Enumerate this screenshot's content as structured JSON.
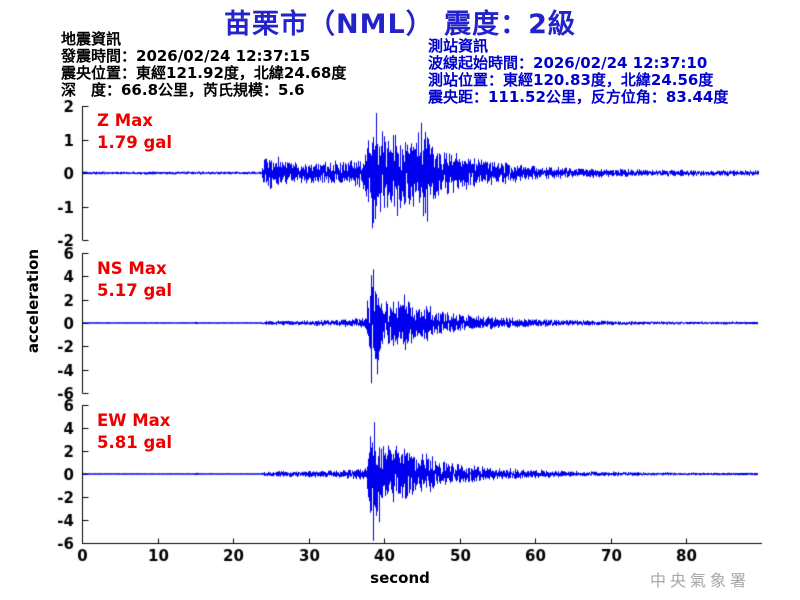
{
  "title": "苗栗市（NML） 震度：2級",
  "earthquake_info": {
    "heading": "地震資訊",
    "lines": [
      "發震時間：2026/02/24 12:37:15",
      "震央位置：東經121.92度，北緯24.68度",
      "深　度：66.8公里，芮氏規模：5.6"
    ]
  },
  "station_info": {
    "heading": "測站資訊",
    "lines": [
      "波線起始時間：2026/02/24 12:37:10",
      "測站位置：東經120.83度，北緯24.56度",
      "震央距：111.52公里，反方位角：83.44度"
    ]
  },
  "watermark": "中央氣象署",
  "colors": {
    "title": "#2323cc",
    "station_info": "#0000cc",
    "max_label": "#ee0000",
    "waveform": "#0000ee",
    "axis": "#000000",
    "watermark": "#a8a8a8"
  },
  "chart_data": {
    "type": "line",
    "title": "苗栗市（NML） 震度：2級",
    "xlabel": "second",
    "ylabel": "acceleration",
    "x_range": [
      0,
      90
    ],
    "x_ticks": [
      0,
      10,
      20,
      30,
      40,
      50,
      60,
      70,
      80
    ],
    "grid": false,
    "unit": "gal",
    "p_arrival_s": 24,
    "s_arrival_s": 38.3,
    "series": [
      {
        "name": "Z",
        "max_label": "Z Max",
        "max_value": "1.79 gal",
        "max": 1.79,
        "ylim": [
          -2,
          2
        ],
        "y_ticks": [
          2,
          1,
          0,
          -1,
          -2
        ],
        "envelope": [
          [
            0,
            0.05
          ],
          [
            23.7,
            0.05
          ],
          [
            24,
            0.5
          ],
          [
            25,
            0.62
          ],
          [
            26.5,
            0.45
          ],
          [
            28,
            0.38
          ],
          [
            30,
            0.42
          ],
          [
            32,
            0.36
          ],
          [
            34,
            0.4
          ],
          [
            36,
            0.44
          ],
          [
            37.3,
            0.6
          ],
          [
            38,
            1.3
          ],
          [
            38.8,
            1.85
          ],
          [
            40,
            1.5
          ],
          [
            41,
            1.25
          ],
          [
            41.8,
            1.45
          ],
          [
            43,
            1.1
          ],
          [
            44,
            1.3
          ],
          [
            45.3,
            1.4
          ],
          [
            46.5,
            1.0
          ],
          [
            48,
            0.8
          ],
          [
            50,
            0.6
          ],
          [
            52,
            0.5
          ],
          [
            54,
            0.42
          ],
          [
            56,
            0.36
          ],
          [
            58,
            0.3
          ],
          [
            60,
            0.26
          ],
          [
            63,
            0.2
          ],
          [
            66,
            0.17
          ],
          [
            70,
            0.14
          ],
          [
            75,
            0.12
          ],
          [
            80,
            0.11
          ],
          [
            85,
            0.1
          ],
          [
            89.6,
            0.09
          ]
        ],
        "spikes": [
          [
            38.9,
            1.79
          ],
          [
            38.4,
            -1.65
          ],
          [
            44.9,
            1.5
          ],
          [
            45.6,
            -1.45
          ]
        ]
      },
      {
        "name": "NS",
        "max_label": "NS Max",
        "max_value": "5.17 gal",
        "max": 5.17,
        "ylim": [
          -6,
          6
        ],
        "y_ticks": [
          6,
          4,
          2,
          0,
          -2,
          -4,
          -6
        ],
        "envelope": [
          [
            0,
            0.025
          ],
          [
            14.8,
            0.025
          ],
          [
            15,
            0.09
          ],
          [
            15.3,
            0.025
          ],
          [
            23.7,
            0.025
          ],
          [
            24,
            0.22
          ],
          [
            26,
            0.25
          ],
          [
            28,
            0.24
          ],
          [
            30,
            0.27
          ],
          [
            32,
            0.3
          ],
          [
            34,
            0.33
          ],
          [
            36,
            0.42
          ],
          [
            37.5,
            0.55
          ],
          [
            38.1,
            4.9
          ],
          [
            38.9,
            4.2
          ],
          [
            39.6,
            2.6
          ],
          [
            40.5,
            3.0
          ],
          [
            41.5,
            2.4
          ],
          [
            42.5,
            2.7
          ],
          [
            43.5,
            2.0
          ],
          [
            44.5,
            1.6
          ],
          [
            45.5,
            1.8
          ],
          [
            46.5,
            1.4
          ],
          [
            48,
            1.1
          ],
          [
            50,
            0.9
          ],
          [
            52,
            0.75
          ],
          [
            54,
            0.6
          ],
          [
            56,
            0.5
          ],
          [
            58,
            0.44
          ],
          [
            60,
            0.4
          ],
          [
            63,
            0.33
          ],
          [
            66,
            0.28
          ],
          [
            70,
            0.22
          ],
          [
            75,
            0.17
          ],
          [
            80,
            0.13
          ],
          [
            85,
            0.1
          ],
          [
            89.4,
            0.07
          ]
        ],
        "spikes": [
          [
            38.3,
            -5.17
          ],
          [
            38.55,
            4.6
          ],
          [
            39.1,
            -4.4
          ]
        ]
      },
      {
        "name": "EW",
        "max_label": "EW Max",
        "max_value": "5.81 gal",
        "max": 5.81,
        "ylim": [
          -6,
          6
        ],
        "y_ticks": [
          6,
          4,
          2,
          0,
          -2,
          -4,
          -6
        ],
        "envelope": [
          [
            0,
            0.025
          ],
          [
            14.8,
            0.025
          ],
          [
            15,
            0.13
          ],
          [
            15.4,
            0.025
          ],
          [
            23.7,
            0.025
          ],
          [
            24,
            0.27
          ],
          [
            26,
            0.28
          ],
          [
            28,
            0.3
          ],
          [
            30,
            0.32
          ],
          [
            32,
            0.35
          ],
          [
            34,
            0.38
          ],
          [
            36,
            0.48
          ],
          [
            37.6,
            0.65
          ],
          [
            38.2,
            5.2
          ],
          [
            39,
            4.3
          ],
          [
            39.8,
            3.1
          ],
          [
            40.8,
            3.3
          ],
          [
            41.8,
            2.6
          ],
          [
            42.8,
            2.9
          ],
          [
            43.8,
            2.1
          ],
          [
            44.8,
            1.8
          ],
          [
            45.8,
            2.0
          ],
          [
            46.8,
            1.5
          ],
          [
            48,
            1.25
          ],
          [
            50,
            1.0
          ],
          [
            52,
            0.85
          ],
          [
            54,
            0.68
          ],
          [
            56,
            0.55
          ],
          [
            58,
            0.48
          ],
          [
            60,
            0.42
          ],
          [
            63,
            0.35
          ],
          [
            66,
            0.29
          ],
          [
            70,
            0.23
          ],
          [
            75,
            0.17
          ],
          [
            80,
            0.13
          ],
          [
            85,
            0.1
          ],
          [
            89.4,
            0.07
          ]
        ],
        "spikes": [
          [
            38.45,
            -5.81
          ],
          [
            38.7,
            4.5
          ],
          [
            39.3,
            -4.2
          ]
        ]
      }
    ]
  }
}
